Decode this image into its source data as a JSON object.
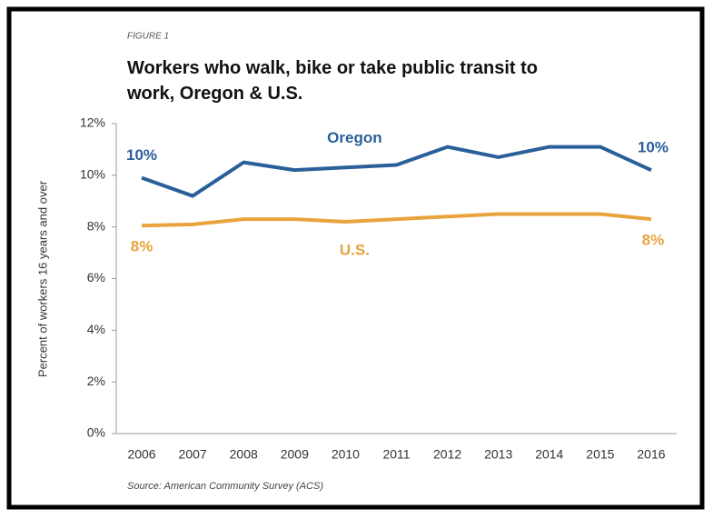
{
  "chart_data": {
    "type": "line",
    "figure_label": "FIGURE 1",
    "title": "Workers who walk, bike or take public transit to work, Oregon & U.S.",
    "y_axis_label": "Percent of workers 16 years and over",
    "source": "Source:  American Community Survey (ACS)",
    "categories": [
      "2006",
      "2007",
      "2008",
      "2009",
      "2010",
      "2011",
      "2012",
      "2013",
      "2014",
      "2015",
      "2016"
    ],
    "series": [
      {
        "name": "Oregon",
        "color": "#2a6099",
        "values": [
          9.9,
          9.2,
          10.5,
          10.2,
          10.3,
          10.4,
          11.1,
          10.7,
          11.1,
          11.1,
          10.2
        ],
        "value_labels": [
          "10%",
          null,
          null,
          null,
          null,
          null,
          null,
          null,
          null,
          null,
          "10%"
        ]
      },
      {
        "name": "U.S.",
        "color": "#e8a33c",
        "values": [
          8.05,
          8.1,
          8.3,
          8.3,
          8.2,
          8.3,
          8.4,
          8.5,
          8.5,
          8.5,
          8.3
        ],
        "value_labels": [
          "8%",
          null,
          null,
          null,
          null,
          null,
          null,
          null,
          null,
          null,
          "8%"
        ]
      }
    ],
    "ylim": [
      0,
      12
    ],
    "yticks": [
      {
        "value": 0,
        "label": "0%"
      },
      {
        "value": 2,
        "label": "2%"
      },
      {
        "value": 4,
        "label": "4%"
      },
      {
        "value": 6,
        "label": "6%"
      },
      {
        "value": 8,
        "label": "8%"
      },
      {
        "value": 10,
        "label": "10%"
      },
      {
        "value": 12,
        "label": "12%"
      }
    ],
    "grid": false
  }
}
